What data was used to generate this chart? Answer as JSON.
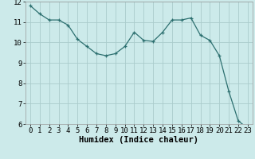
{
  "x": [
    0,
    1,
    2,
    3,
    4,
    5,
    6,
    7,
    8,
    9,
    10,
    11,
    12,
    13,
    14,
    15,
    16,
    17,
    18,
    19,
    20,
    21,
    22,
    23
  ],
  "y": [
    11.8,
    11.4,
    11.1,
    11.1,
    10.85,
    10.15,
    9.8,
    9.45,
    9.35,
    9.45,
    9.8,
    10.5,
    10.1,
    10.05,
    10.5,
    11.1,
    11.1,
    11.2,
    10.35,
    10.1,
    9.35,
    7.6,
    6.15,
    5.8
  ],
  "line_color": "#2d7070",
  "marker": "+",
  "marker_color": "#2d7070",
  "bg_color": "#cceaea",
  "grid_color": "#aacccc",
  "xlabel": "Humidex (Indice chaleur)",
  "ylim": [
    6,
    12
  ],
  "xlim_min": -0.5,
  "xlim_max": 23.5,
  "yticks": [
    6,
    7,
    8,
    9,
    10,
    11,
    12
  ],
  "xticks": [
    0,
    1,
    2,
    3,
    4,
    5,
    6,
    7,
    8,
    9,
    10,
    11,
    12,
    13,
    14,
    15,
    16,
    17,
    18,
    19,
    20,
    21,
    22,
    23
  ],
  "tick_fontsize": 6.5,
  "xlabel_fontsize": 7.5,
  "xlabel_fontweight": "bold",
  "linewidth": 0.9,
  "markersize": 3.5
}
